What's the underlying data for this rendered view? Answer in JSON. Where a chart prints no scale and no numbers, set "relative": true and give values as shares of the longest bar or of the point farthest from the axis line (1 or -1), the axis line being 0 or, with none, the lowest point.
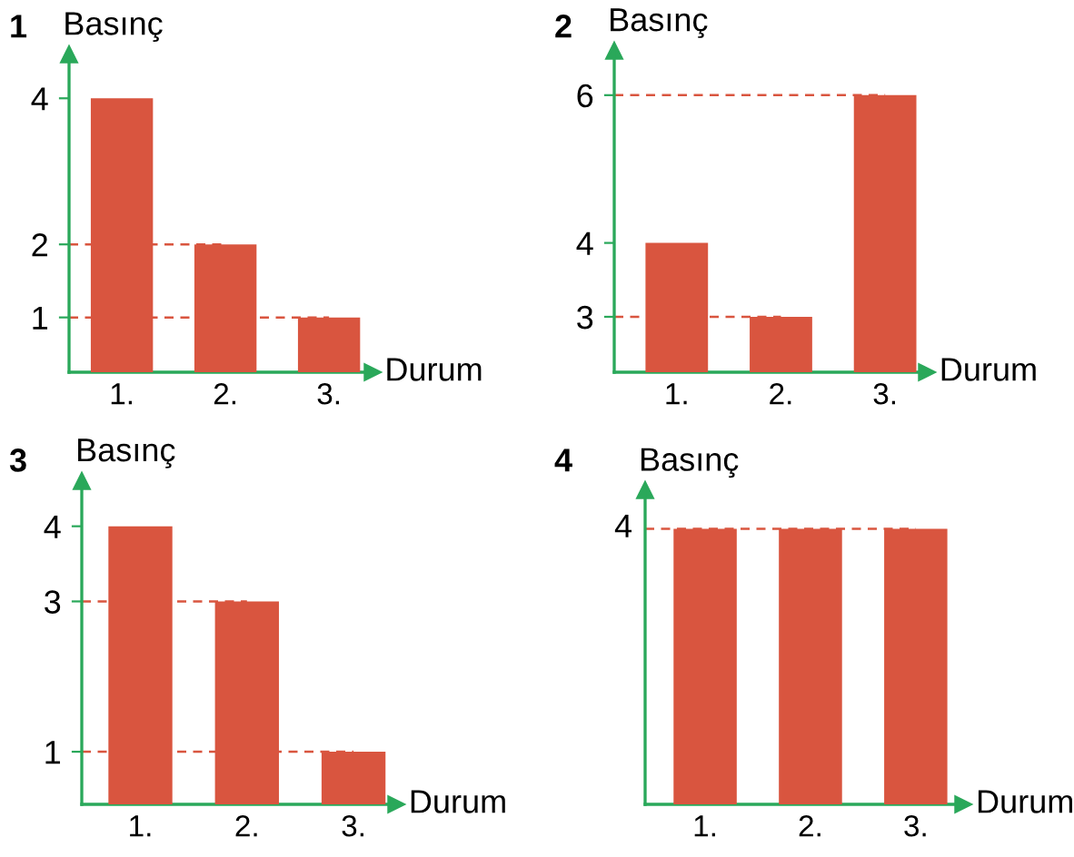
{
  "chart_data": [
    {
      "type": "bar",
      "title": "1",
      "ylabel": "Basınç",
      "xlabel": "Durum",
      "categories": [
        "1.",
        "2.",
        "3."
      ],
      "values": [
        4,
        2,
        1
      ],
      "color": "#d9553f",
      "ylim": [
        0.25,
        4.6
      ],
      "yticks": [
        1,
        2,
        4
      ],
      "ref_lines": [
        {
          "axis": "y",
          "value": 2,
          "color": "#d9553f",
          "line_style": "dashed"
        },
        {
          "axis": "y",
          "value": 1,
          "color": "#d9553f",
          "line_style": "dashed"
        }
      ]
    },
    {
      "type": "bar",
      "title": "2",
      "ylabel": "Basınç",
      "xlabel": "Durum",
      "categories": [
        "1.",
        "2.",
        "3."
      ],
      "values": [
        4,
        3,
        6
      ],
      "color": "#d9553f",
      "ylim": [
        2.25,
        6.6
      ],
      "yticks": [
        3,
        4,
        6
      ],
      "ref_lines": [
        {
          "axis": "y",
          "value": 6,
          "color": "#d9553f",
          "line_style": "dashed"
        },
        {
          "axis": "y",
          "value": 3,
          "color": "#d9553f",
          "line_style": "dashed"
        }
      ]
    },
    {
      "type": "bar",
      "title": "3",
      "ylabel": "Basınç",
      "xlabel": "Durum",
      "categories": [
        "1.",
        "2.",
        "3."
      ],
      "values": [
        4,
        3,
        1
      ],
      "color": "#d9553f",
      "ylim": [
        0.3,
        4.6
      ],
      "yticks": [
        1,
        3,
        4
      ],
      "ref_lines": [
        {
          "axis": "y",
          "value": 3,
          "color": "#d9553f",
          "line_style": "dashed"
        },
        {
          "axis": "y",
          "value": 1,
          "color": "#d9553f",
          "line_style": "dashed"
        }
      ]
    },
    {
      "type": "bar",
      "title": "4",
      "ylabel": "Basınç",
      "xlabel": "Durum",
      "categories": [
        "1.",
        "2.",
        "3."
      ],
      "values": [
        1,
        1,
        1
      ],
      "color": "#d9553f",
      "relative": true,
      "annotations": [
        "4"
      ],
      "ref_lines": [
        {
          "axis": "y",
          "value": 1,
          "color": "#d9553f",
          "line_style": "dashed"
        }
      ]
    }
  ]
}
